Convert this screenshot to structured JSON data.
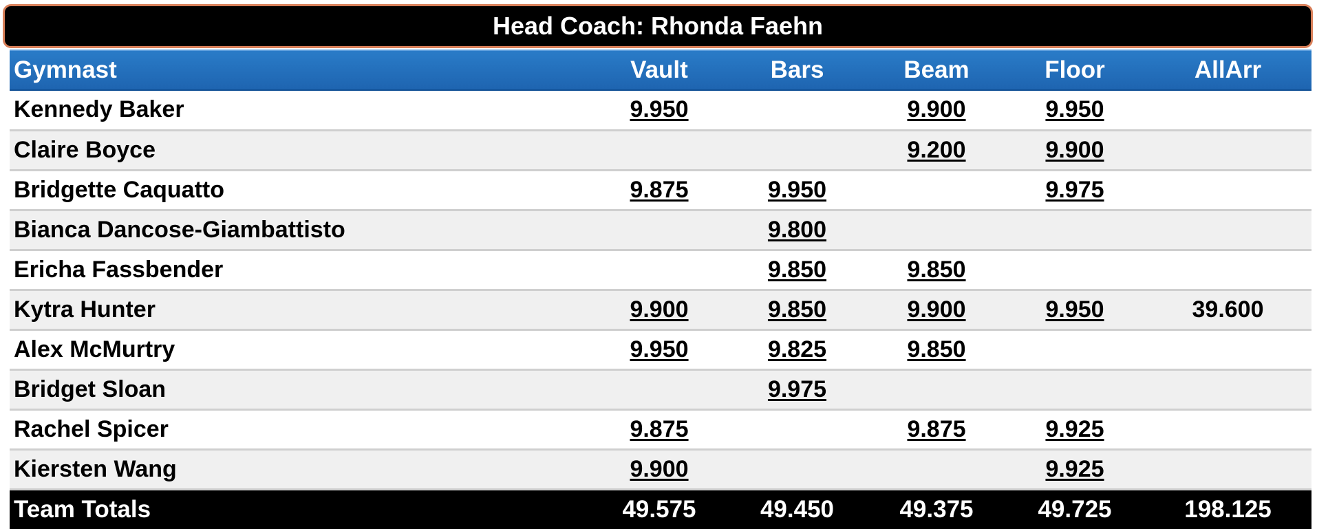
{
  "header": {
    "coach_line": "Head Coach: Rhonda Faehn"
  },
  "columns": {
    "gymnast": "Gymnast",
    "vault": "Vault",
    "bars": "Bars",
    "beam": "Beam",
    "floor": "Floor",
    "aa": "AllArr"
  },
  "rows": [
    {
      "name": "Kennedy Baker",
      "vault": "9.950",
      "bars": "",
      "beam": "9.900",
      "floor": "9.950",
      "aa": ""
    },
    {
      "name": "Claire Boyce",
      "vault": "",
      "bars": "",
      "beam": "9.200",
      "floor": "9.900",
      "aa": ""
    },
    {
      "name": "Bridgette Caquatto",
      "vault": "9.875",
      "bars": "9.950",
      "beam": "",
      "floor": "9.975",
      "aa": ""
    },
    {
      "name": "Bianca Dancose-Giambattisto",
      "vault": "",
      "bars": "9.800",
      "beam": "",
      "floor": "",
      "aa": ""
    },
    {
      "name": "Ericha Fassbender",
      "vault": "",
      "bars": "9.850",
      "beam": "9.850",
      "floor": "",
      "aa": ""
    },
    {
      "name": "Kytra Hunter",
      "vault": "9.900",
      "bars": "9.850",
      "beam": "9.900",
      "floor": "9.950",
      "aa": "39.600"
    },
    {
      "name": "Alex McMurtry",
      "vault": "9.950",
      "bars": "9.825",
      "beam": "9.850",
      "floor": "",
      "aa": ""
    },
    {
      "name": "Bridget Sloan",
      "vault": "",
      "bars": "9.975",
      "beam": "",
      "floor": "",
      "aa": ""
    },
    {
      "name": "Rachel Spicer",
      "vault": "9.875",
      "bars": "",
      "beam": "9.875",
      "floor": "9.925",
      "aa": ""
    },
    {
      "name": "Kiersten Wang",
      "vault": "9.900",
      "bars": "",
      "beam": "",
      "floor": "9.925",
      "aa": ""
    }
  ],
  "totals": {
    "label": "Team Totals",
    "vault": "49.575",
    "bars": "49.450",
    "beam": "49.375",
    "floor": "49.725",
    "aa": "198.125"
  },
  "colors": {
    "header_blue": "#1e64b0",
    "coach_bar_bg": "#000000",
    "coach_bar_border": "#d9805a",
    "alt_row": "#f0f0f0"
  }
}
